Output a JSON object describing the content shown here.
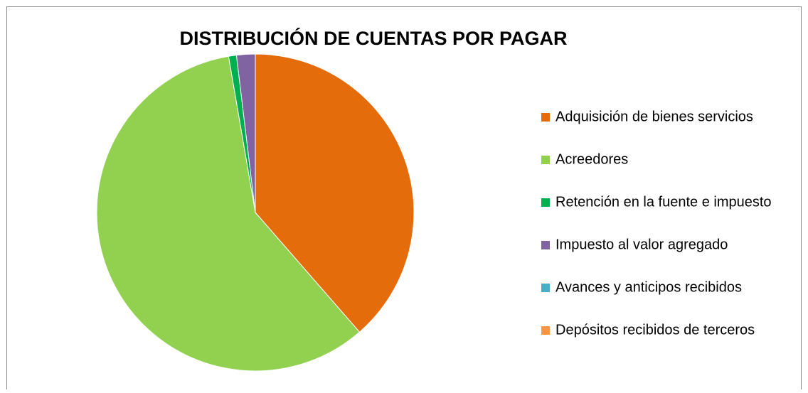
{
  "chart_data": {
    "type": "pie",
    "title": "DISTRIBUCIÓN DE CUENTAS POR PAGAR",
    "categories": [
      "Adquisición de bienes servicios",
      "Acreedores",
      "Retención en la fuente e impuesto",
      "Impuesto al valor agregado",
      "Avances y anticipos recibidos",
      "Depósitos recibidos de terceros"
    ],
    "values": [
      38.6,
      58.7,
      0.8,
      1.9,
      0,
      0
    ],
    "colors": [
      "#e46c0a",
      "#92d050",
      "#00b050",
      "#8064a2",
      "#4bacc6",
      "#f79646"
    ],
    "legend": "right"
  }
}
